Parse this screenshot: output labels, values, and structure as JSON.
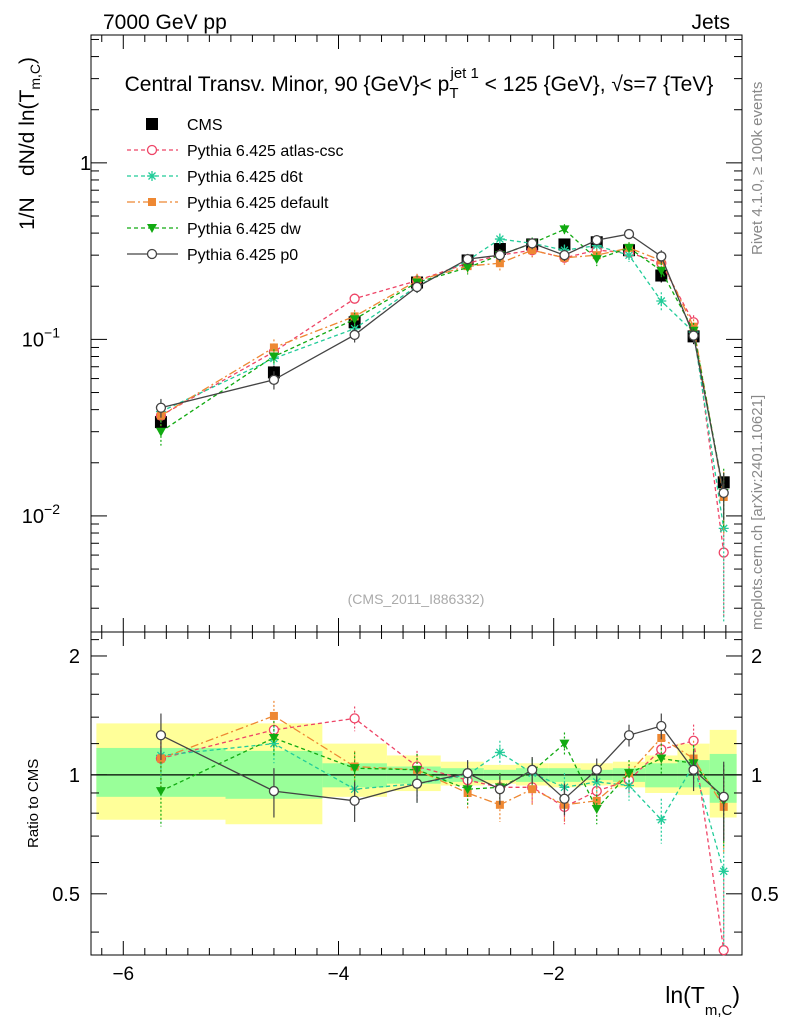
{
  "header": {
    "left": "7000 GeV pp",
    "right": "Jets"
  },
  "title": {
    "text": "Central Transv. Minor, 90 {GeV}< p",
    "sub": "T",
    "sup": "jet 1",
    "rest": " < 125 {GeV}, √s=7 {TeV}"
  },
  "side_labels": {
    "rivet": "Rivet 4.1.0, ≥ 100k events",
    "mcplots": "mcplots.cern.ch [arXiv:2401.10621]"
  },
  "watermark": "(CMS_2011_I886332)",
  "chart_data": {
    "type": "line",
    "xlabel": "ln(T",
    "xlabel_sub": "m,C",
    "xlabel_end": ")",
    "ylabel_prefix": "1/N",
    "ylabel": "dN/d ln(T",
    "ylabel_sub": "m,C",
    "ylabel_end": ")",
    "ratio_ylabel": "Ratio to CMS",
    "xlim": [
      -6.3,
      -0.25
    ],
    "ylim": [
      0.0022,
      5.3
    ],
    "ratio_ylim": [
      0.35,
      2.3
    ],
    "x_ticks": [
      -6,
      -4,
      -2
    ],
    "x_tick_labels": [
      "−6",
      "−4",
      "−2"
    ],
    "y_ticks": [
      {
        "base": "1",
        "exp": "",
        "value": 1
      },
      {
        "base": "10",
        "exp": "−1",
        "value": 0.1
      },
      {
        "base": "10",
        "exp": "−2",
        "value": 0.01
      }
    ],
    "ratio_ticks": [
      {
        "label": "2",
        "value": 2
      },
      {
        "label": "1",
        "value": 1
      },
      {
        "label": "0.5",
        "value": 0.5
      }
    ],
    "x": [
      -5.65,
      -4.6,
      -3.85,
      -3.27,
      -2.8,
      -2.5,
      -2.2,
      -1.9,
      -1.6,
      -1.3,
      -1.0,
      -0.7,
      -0.42
    ],
    "bin_edges": [
      -6.25,
      -5.05,
      -4.15,
      -3.55,
      -3.05,
      -2.65,
      -2.35,
      -2.05,
      -1.75,
      -1.45,
      -1.15,
      -0.85,
      -0.55,
      -0.3
    ],
    "band_inner": [
      [
        0.88,
        1.17
      ],
      [
        0.87,
        1.15
      ],
      [
        0.93,
        1.07
      ],
      [
        0.95,
        1.05
      ],
      [
        0.96,
        1.04
      ],
      [
        0.97,
        1.03
      ],
      [
        0.96,
        1.04
      ],
      [
        0.96,
        1.04
      ],
      [
        0.97,
        1.03
      ],
      [
        0.96,
        1.04
      ],
      [
        0.93,
        1.07
      ],
      [
        0.93,
        1.09
      ],
      [
        0.85,
        1.13
      ]
    ],
    "band_outer": [
      [
        0.77,
        1.35
      ],
      [
        0.75,
        1.35
      ],
      [
        0.88,
        1.2
      ],
      [
        0.91,
        1.12
      ],
      [
        0.94,
        1.08
      ],
      [
        0.95,
        1.06
      ],
      [
        0.94,
        1.07
      ],
      [
        0.93,
        1.07
      ],
      [
        0.94,
        1.07
      ],
      [
        0.93,
        1.08
      ],
      [
        0.9,
        1.12
      ],
      [
        0.89,
        1.2
      ],
      [
        0.78,
        1.3
      ]
    ],
    "series": [
      {
        "name": "CMS",
        "color": "#000000",
        "marker": "square",
        "dash": "none",
        "line": false,
        "values": [
          0.034,
          0.065,
          0.125,
          0.21,
          0.28,
          0.325,
          0.345,
          0.345,
          0.355,
          0.32,
          0.23,
          0.104,
          0.0155
        ],
        "errors": [
          0.004,
          0.006,
          0.01,
          0.015,
          0.02,
          0.02,
          0.02,
          0.02,
          0.02,
          0.02,
          0.02,
          0.01,
          0.002
        ]
      },
      {
        "name": "Pythia 6.425 atlas-csc",
        "color": "#ee4466",
        "marker": "circle-open",
        "dash": "4,3",
        "line": true,
        "values": [
          0.037,
          0.085,
          0.17,
          0.215,
          0.27,
          0.3,
          0.32,
          0.29,
          0.32,
          0.31,
          0.27,
          0.125,
          0.0062
        ],
        "errors": [
          0.006,
          0.008,
          0.012,
          0.02,
          0.022,
          0.025,
          0.028,
          0.025,
          0.025,
          0.025,
          0.025,
          0.012,
          0.0035
        ],
        "ratio": [
          1.1,
          1.3,
          1.39,
          1.05,
          0.97,
          0.93,
          0.93,
          0.83,
          0.91,
          0.97,
          1.16,
          1.22,
          0.36
        ],
        "ratio_err": [
          0.17,
          0.13,
          0.1,
          0.1,
          0.08,
          0.08,
          0.08,
          0.08,
          0.07,
          0.08,
          0.1,
          0.12,
          0.2
        ]
      },
      {
        "name": "Pythia 6.425 d6t",
        "color": "#22cc99",
        "marker": "star",
        "dash": "4,3",
        "line": true,
        "values": [
          0.039,
          0.078,
          0.115,
          0.2,
          0.28,
          0.37,
          0.35,
          0.32,
          0.34,
          0.3,
          0.165,
          0.11,
          0.0085
        ],
        "errors": [
          0.006,
          0.008,
          0.012,
          0.02,
          0.022,
          0.028,
          0.028,
          0.025,
          0.025,
          0.025,
          0.02,
          0.012,
          0.006
        ],
        "ratio": [
          1.12,
          1.2,
          0.92,
          0.95,
          1.0,
          1.14,
          1.01,
          0.93,
          0.96,
          0.94,
          0.77,
          1.06,
          0.57
        ],
        "ratio_err": [
          0.17,
          0.13,
          0.1,
          0.1,
          0.08,
          0.08,
          0.08,
          0.08,
          0.07,
          0.08,
          0.1,
          0.12,
          0.2
        ]
      },
      {
        "name": "Pythia 6.425 default",
        "color": "#ee8833",
        "marker": "square-filled",
        "dash": "8,3,2,3",
        "line": true,
        "values": [
          0.037,
          0.09,
          0.135,
          0.215,
          0.26,
          0.27,
          0.32,
          0.29,
          0.3,
          0.33,
          0.28,
          0.118,
          0.0128
        ],
        "errors": [
          0.006,
          0.01,
          0.012,
          0.02,
          0.022,
          0.025,
          0.028,
          0.025,
          0.025,
          0.025,
          0.025,
          0.012,
          0.005
        ],
        "ratio": [
          1.1,
          1.41,
          1.05,
          1.03,
          0.9,
          0.84,
          0.92,
          0.84,
          0.86,
          1.01,
          1.24,
          1.1,
          0.83
        ],
        "ratio_err": [
          0.17,
          0.13,
          0.1,
          0.1,
          0.08,
          0.08,
          0.08,
          0.08,
          0.07,
          0.08,
          0.1,
          0.12,
          0.2
        ]
      },
      {
        "name": "Pythia 6.425 dw",
        "color": "#11aa11",
        "marker": "triangle-down",
        "dash": "4,3",
        "line": true,
        "values": [
          0.03,
          0.08,
          0.13,
          0.21,
          0.255,
          0.3,
          0.35,
          0.42,
          0.285,
          0.33,
          0.245,
          0.112,
          0.0135
        ],
        "errors": [
          0.005,
          0.008,
          0.012,
          0.02,
          0.022,
          0.025,
          0.028,
          0.03,
          0.025,
          0.025,
          0.025,
          0.012,
          0.005
        ],
        "ratio": [
          0.91,
          1.24,
          1.04,
          1.03,
          0.92,
          0.93,
          1.02,
          1.2,
          0.82,
          1.01,
          1.1,
          1.07,
          0.86
        ],
        "ratio_err": [
          0.17,
          0.13,
          0.1,
          0.1,
          0.08,
          0.08,
          0.08,
          0.08,
          0.07,
          0.08,
          0.1,
          0.12,
          0.2
        ]
      },
      {
        "name": "Pythia 6.425 p0",
        "color": "#444444",
        "marker": "circle-open",
        "dash": "none",
        "line": true,
        "values": [
          0.041,
          0.059,
          0.106,
          0.198,
          0.285,
          0.3,
          0.35,
          0.3,
          0.365,
          0.395,
          0.295,
          0.105,
          0.0135
        ],
        "errors": [
          0.005,
          0.007,
          0.01,
          0.015,
          0.02,
          0.022,
          0.025,
          0.022,
          0.025,
          0.025,
          0.025,
          0.01,
          0.004
        ],
        "ratio": [
          1.26,
          0.91,
          0.86,
          0.95,
          1.01,
          0.92,
          1.03,
          0.87,
          1.03,
          1.26,
          1.33,
          1.03,
          0.88
        ],
        "ratio_err": [
          0.17,
          0.13,
          0.1,
          0.1,
          0.08,
          0.08,
          0.08,
          0.08,
          0.07,
          0.08,
          0.1,
          0.12,
          0.2
        ]
      }
    ]
  }
}
